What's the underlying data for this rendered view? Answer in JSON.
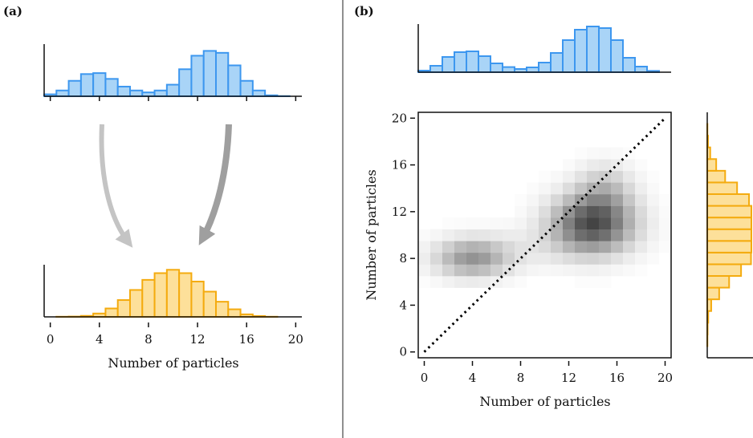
{
  "colors": {
    "blue_fill": "#a9d4f7",
    "blue_edge": "#3d97ef",
    "orange_fill": "#fde09a",
    "orange_edge": "#f4ab0f",
    "arrow_light": "#c4c4c4",
    "arrow_dark": "#9f9f9f",
    "axis": "#111111"
  },
  "panel_a": {
    "label": "(a)",
    "xlabel": "Number of particles",
    "xticks": [
      0,
      4,
      8,
      12,
      16,
      20
    ]
  },
  "panel_b": {
    "label": "(b)",
    "xlabel": "Number of particles",
    "ylabel": "Number of particles",
    "xticks": [
      0,
      4,
      8,
      12,
      16,
      20
    ],
    "yticks": [
      0,
      4,
      8,
      12,
      16,
      20
    ]
  },
  "chart_data": [
    {
      "id": "a-top",
      "type": "bar",
      "bins": [
        0,
        1,
        2,
        3,
        4,
        5,
        6,
        7,
        8,
        9,
        10,
        11,
        12,
        13,
        14,
        15,
        16,
        17,
        18,
        19,
        20
      ],
      "values": [
        0.01,
        0.03,
        0.08,
        0.115,
        0.12,
        0.09,
        0.05,
        0.03,
        0.02,
        0.03,
        0.06,
        0.14,
        0.21,
        0.235,
        0.225,
        0.16,
        0.08,
        0.03,
        0.005,
        0.001,
        0
      ],
      "ylim": [
        0,
        0.27
      ],
      "xlim": [
        -0.5,
        20.5
      ]
    },
    {
      "id": "a-bottom",
      "type": "bar",
      "bins": [
        0,
        1,
        2,
        3,
        4,
        5,
        6,
        7,
        8,
        9,
        10,
        11,
        12,
        13,
        14,
        15,
        16,
        17,
        18,
        19,
        20
      ],
      "values": [
        0,
        0.001,
        0.002,
        0.006,
        0.02,
        0.05,
        0.1,
        0.16,
        0.22,
        0.26,
        0.28,
        0.26,
        0.21,
        0.15,
        0.09,
        0.045,
        0.015,
        0.005,
        0.001,
        0,
        0
      ],
      "ylim": [
        0,
        0.31
      ],
      "xlim": [
        -0.5,
        20.5
      ]
    },
    {
      "id": "b-top",
      "type": "bar",
      "bins": [
        0,
        1,
        2,
        3,
        4,
        5,
        6,
        7,
        8,
        9,
        10,
        11,
        12,
        13,
        14,
        15,
        16,
        17,
        18,
        19,
        20
      ],
      "values": [
        0.01,
        0.04,
        0.095,
        0.125,
        0.13,
        0.1,
        0.055,
        0.032,
        0.02,
        0.03,
        0.06,
        0.12,
        0.2,
        0.265,
        0.285,
        0.275,
        0.2,
        0.09,
        0.035,
        0.008,
        0
      ],
      "ylim": [
        0,
        0.3
      ],
      "xlim": [
        -0.5,
        20.5
      ]
    },
    {
      "id": "b-right",
      "type": "bar",
      "orientation": "horizontal",
      "bins": [
        0,
        1,
        2,
        3,
        4,
        5,
        6,
        7,
        8,
        9,
        10,
        11,
        12,
        13,
        14,
        15,
        16,
        17,
        18,
        19,
        20
      ],
      "values": [
        0,
        0.001,
        0.002,
        0.005,
        0.02,
        0.06,
        0.11,
        0.17,
        0.22,
        0.255,
        0.275,
        0.28,
        0.26,
        0.21,
        0.15,
        0.09,
        0.045,
        0.015,
        0.004,
        0.001,
        0
      ],
      "xlim": [
        0,
        0.23
      ],
      "ylim": [
        -0.5,
        20.5
      ]
    },
    {
      "id": "b-main",
      "type": "heatmap",
      "xlim": [
        -0.5,
        20.5
      ],
      "ylim": [
        -0.5,
        20.5
      ],
      "diagonal": [
        [
          0,
          0
        ],
        [
          20,
          20
        ]
      ],
      "blobs": [
        {
          "x": 4,
          "y": 8,
          "sx": 2.1,
          "sy": 1.1,
          "amp": 0.4
        },
        {
          "x": 14,
          "y": 11,
          "sx": 2.3,
          "sy": 1.7,
          "amp": 0.7
        },
        {
          "x": 9,
          "y": 9,
          "sx": 4.5,
          "sy": 1.3,
          "amp": 0.06
        },
        {
          "x": 15,
          "y": 14,
          "sx": 1.6,
          "sy": 1.5,
          "amp": 0.2
        }
      ]
    }
  ]
}
